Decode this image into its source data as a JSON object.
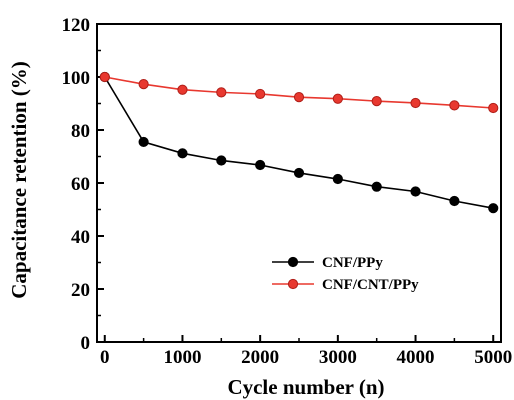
{
  "chart_data": {
    "type": "line",
    "xlabel": "Cycle number (n)",
    "ylabel": "Capacitance retention (%)",
    "xlim": [
      -100,
      5100
    ],
    "ylim": [
      0,
      120
    ],
    "x_ticks": [
      0,
      1000,
      2000,
      3000,
      4000,
      5000
    ],
    "y_ticks": [
      0,
      20,
      40,
      60,
      80,
      100,
      120
    ],
    "grid": false,
    "legend_position": "bottom-right",
    "series": [
      {
        "name": "CNF/PPy",
        "color": "#000000",
        "x": [
          0,
          500,
          1000,
          1500,
          2000,
          2500,
          3000,
          3500,
          4000,
          4500,
          5000
        ],
        "values": [
          100,
          75.5,
          71.2,
          68.5,
          66.8,
          63.8,
          61.5,
          58.6,
          56.8,
          53.2,
          50.5
        ]
      },
      {
        "name": "CNF/CNT/PPy",
        "color": "#e8382f",
        "x": [
          0,
          500,
          1000,
          1500,
          2000,
          2500,
          3000,
          3500,
          4000,
          4500,
          5000
        ],
        "values": [
          100,
          97.3,
          95.2,
          94.2,
          93.6,
          92.4,
          91.8,
          90.9,
          90.2,
          89.3,
          88.3
        ]
      }
    ]
  }
}
